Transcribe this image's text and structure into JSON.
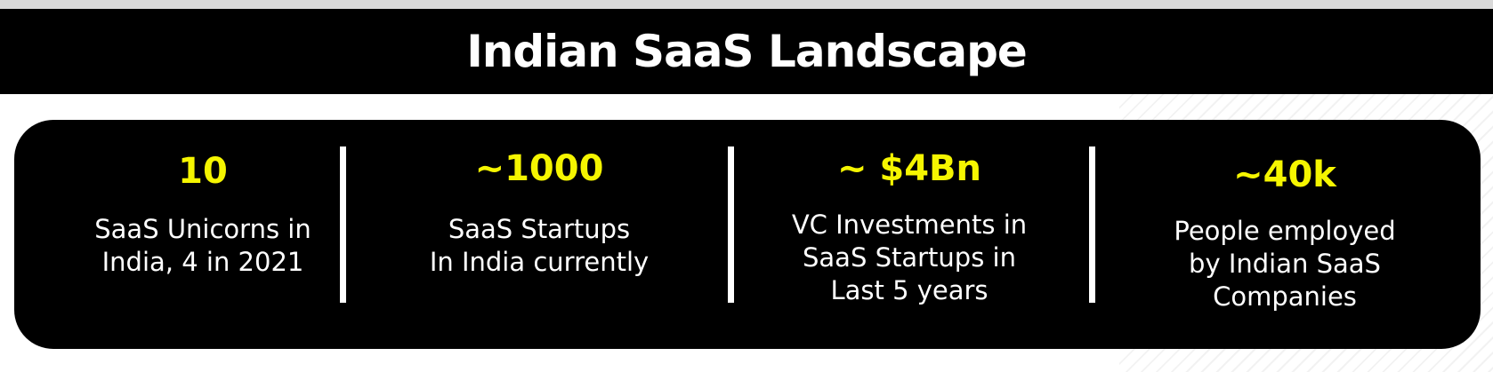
{
  "title": "Indian SaaS Landscape",
  "colors": {
    "background": "#ffffff",
    "card": "#000000",
    "accent": "#f5f500",
    "text": "#ffffff"
  },
  "stats": [
    {
      "value": "10",
      "description": "SaaS Unicorns in\nIndia, 4 in 2021"
    },
    {
      "value": "~1000",
      "description": "SaaS Startups\nIn India currently"
    },
    {
      "value": "~ $4Bn",
      "description": "VC Investments in\nSaaS Startups in\nLast 5 years"
    },
    {
      "value": "~40k",
      "description": "People employed\nby Indian SaaS\nCompanies"
    }
  ]
}
